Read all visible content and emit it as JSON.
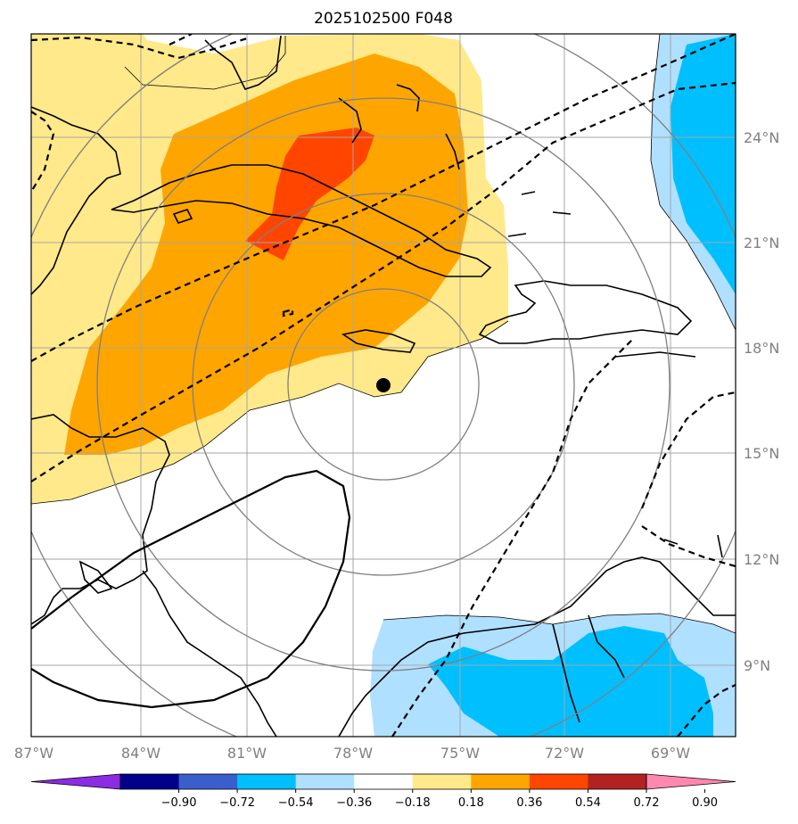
{
  "title": "2025102500 F048",
  "axes": {
    "lat_labels": [
      "24°N",
      "21°N",
      "18°N",
      "15°N",
      "12°N",
      "9°N"
    ],
    "lon_labels": [
      "87°W",
      "84°W",
      "81°W",
      "78°W",
      "75°W",
      "72°W",
      "69°W"
    ]
  },
  "colorbar": {
    "labels": [
      "−0.90",
      "−0.72",
      "−0.54",
      "−0.36",
      "−0.18",
      "0.18",
      "0.36",
      "0.54",
      "0.72",
      "0.90"
    ],
    "colors": [
      "#8b2be2",
      "#00008b",
      "#3a5fcd",
      "#00bfff",
      "#b0e0ff",
      "#ffffff",
      "#ffe98a",
      "#ffa500",
      "#ff4500",
      "#b22222",
      "#ff88b0"
    ],
    "extend": "both"
  },
  "map": {
    "center_marker": "filled-black-circle",
    "range_rings": "gray concentric circles",
    "contours": "dashed black lines and a solid black closed contour",
    "shading_colors": {
      "light_yellow": "#ffe98a",
      "orange": "#ffa500",
      "red_orange": "#ff4500",
      "light_blue": "#b0e0ff",
      "deep_sky_blue": "#00bfff"
    }
  }
}
